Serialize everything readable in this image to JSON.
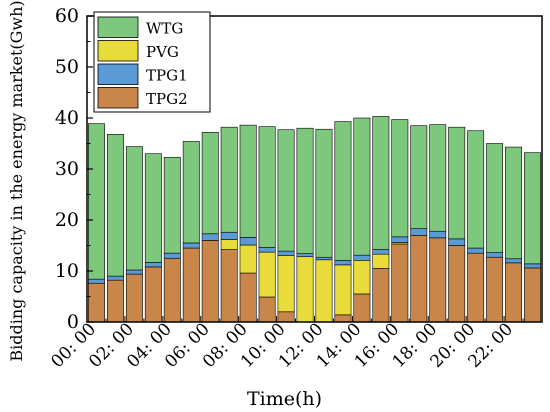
{
  "chart_data": {
    "type": "bar",
    "stacked": true,
    "xlabel": "Time(h)",
    "ylabel": "Bidding capacity in the energy market(Gwh)",
    "ylim": [
      0,
      60
    ],
    "yticks": [
      "0",
      "10",
      "20",
      "30",
      "40",
      "50",
      "60"
    ],
    "xtick_labels": [
      "00: 00",
      "02: 00",
      "04: 00",
      "06: 00",
      "08: 00",
      "10: 00",
      "12: 00",
      "14: 00",
      "16: 00",
      "18: 00",
      "20: 00",
      "22: 00"
    ],
    "categories": [
      "0",
      "1",
      "2",
      "3",
      "4",
      "5",
      "6",
      "7",
      "8",
      "9",
      "10",
      "11",
      "12",
      "13",
      "14",
      "15",
      "16",
      "17",
      "18",
      "19",
      "20",
      "21",
      "22",
      "23"
    ],
    "stack_order": [
      "TPG2",
      "PVG",
      "TPG1",
      "WTG"
    ],
    "legend_order": [
      "WTG",
      "PVG",
      "TPG1",
      "TPG2"
    ],
    "legend_position": "top-left",
    "series": [
      {
        "name": "WTG",
        "color": "#7ec87e",
        "values": [
          30.5,
          27.8,
          24.2,
          21.3,
          18.8,
          19.9,
          19.9,
          20.6,
          22.0,
          23.7,
          23.8,
          24.6,
          25.1,
          27.2,
          26.9,
          26.1,
          23.0,
          20.2,
          20.9,
          21.9,
          23.0,
          21.4,
          21.9,
          21.8
        ]
      },
      {
        "name": "PVG",
        "color": "#e8dc3a",
        "values": [
          0,
          0,
          0,
          0,
          0,
          0,
          0,
          2.0,
          5.5,
          8.8,
          11.0,
          12.8,
          12.2,
          9.8,
          6.6,
          2.8,
          0.3,
          0,
          0,
          0,
          0,
          0,
          0,
          0
        ]
      },
      {
        "name": "TPG1",
        "color": "#5b9bd5",
        "values": [
          0.8,
          0.8,
          0.8,
          0.9,
          1.0,
          1.0,
          1.3,
          1.4,
          1.5,
          0.9,
          0.9,
          0.6,
          0.5,
          0.9,
          1.0,
          0.9,
          1.1,
          1.3,
          1.3,
          1.3,
          1.0,
          0.9,
          0.8,
          0.8
        ]
      },
      {
        "name": "TPG2",
        "color": "#c8864a",
        "values": [
          7.6,
          8.2,
          9.4,
          10.8,
          12.5,
          14.5,
          16.0,
          14.2,
          9.6,
          4.9,
          2.0,
          0,
          0,
          1.4,
          5.5,
          10.5,
          15.3,
          17.0,
          16.5,
          15.0,
          13.5,
          12.7,
          11.6,
          10.6
        ]
      }
    ]
  }
}
